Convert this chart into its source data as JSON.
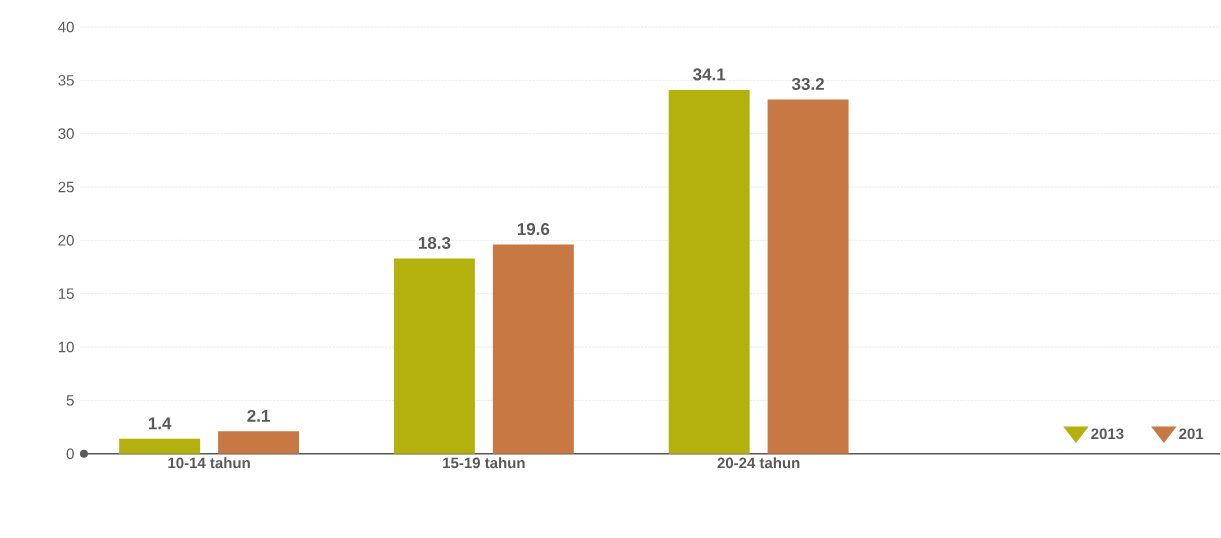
{
  "chart_data": {
    "type": "bar",
    "categories": [
      "10-14 tahun",
      "15-19 tahun",
      "20-24 tahun"
    ],
    "series": [
      {
        "name": "2013",
        "color": "#b5b10c",
        "values": [
          1.4,
          18.3,
          34.1
        ]
      },
      {
        "name": "201",
        "color": "#c87843",
        "values": [
          2.1,
          19.6,
          33.2
        ]
      }
    ],
    "ylim": [
      0,
      40
    ],
    "yticks": [
      0,
      5,
      10,
      15,
      20,
      25,
      30,
      35,
      40
    ],
    "grid": "y",
    "legend": "bottom right",
    "data_labels": true
  }
}
